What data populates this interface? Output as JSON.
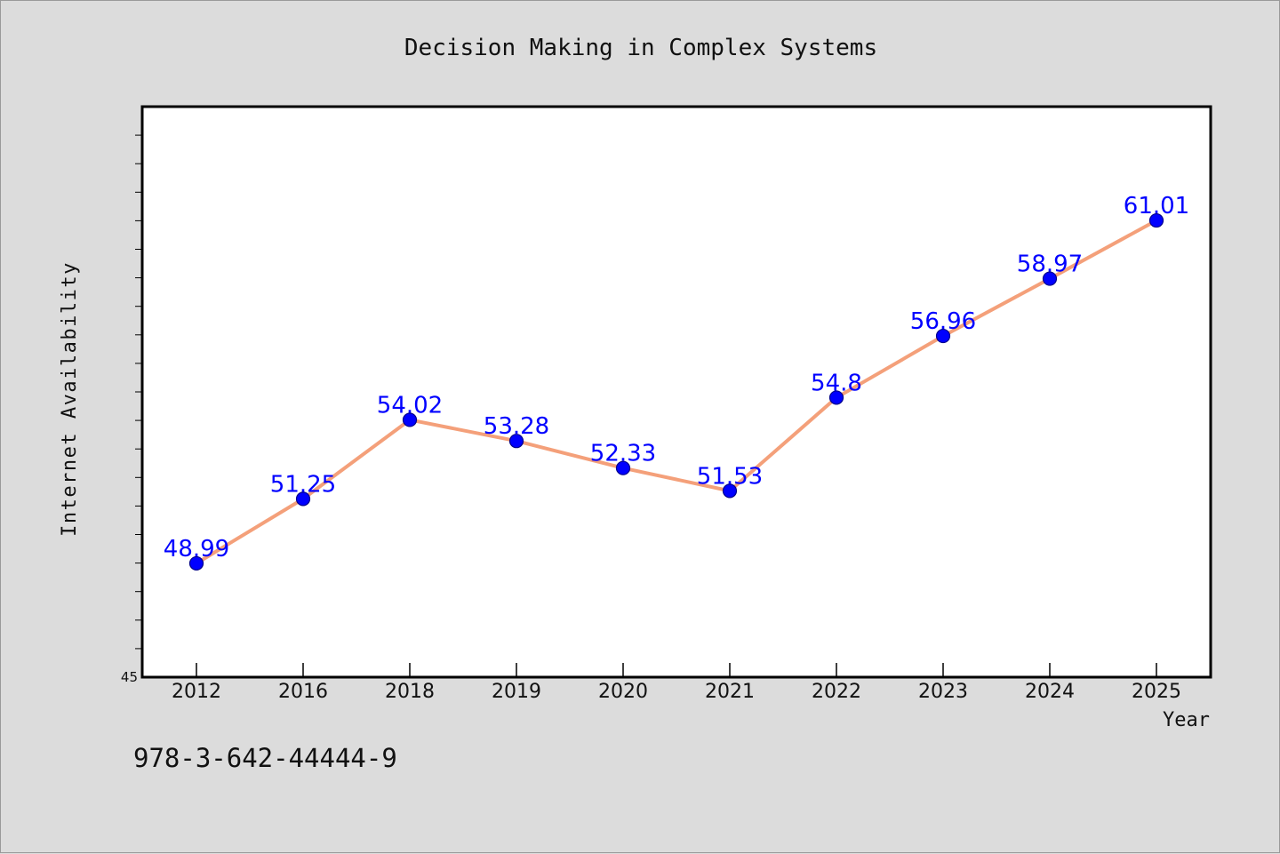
{
  "chart_data": {
    "type": "line",
    "title": "Decision Making in Complex Systems",
    "xlabel": "Year",
    "ylabel": "Internet Availability",
    "categories": [
      "2012",
      "2016",
      "2018",
      "2019",
      "2020",
      "2021",
      "2022",
      "2023",
      "2024",
      "2025"
    ],
    "series": [
      {
        "values": [
          48.99,
          51.25,
          54.02,
          53.28,
          52.33,
          51.53,
          54.8,
          56.96,
          58.97,
          61.01
        ],
        "labels": [
          "48.99",
          "51.25",
          "54.02",
          "53.28",
          "52.33",
          "51.53",
          "54.8",
          "56.96",
          "58.97",
          "61.01"
        ],
        "line_color": "#f4a07a",
        "marker_color": "#0000ff"
      }
    ],
    "ylim": [
      45,
      65
    ],
    "yticks": [
      "45"
    ],
    "grid": false,
    "legend": "none",
    "annotation": "978-3-642-44444-9"
  }
}
